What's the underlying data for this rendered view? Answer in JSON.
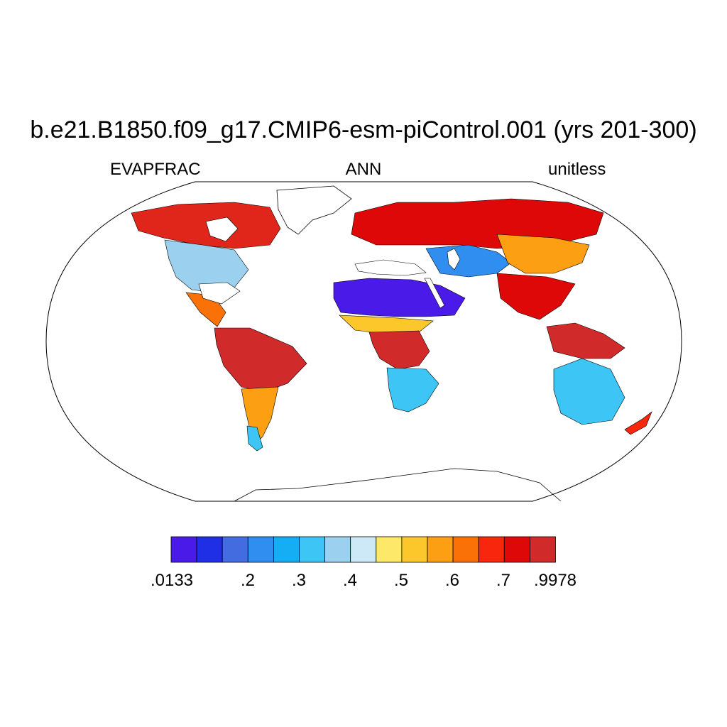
{
  "title": "b.e21.B1850.f09_g17.CMIP6-esm-piControl.001 (yrs 201-300)",
  "left_subtitle": "EVAPFRAC",
  "center_subtitle": "ANN",
  "right_subtitle": "unitless",
  "colorbar": {
    "colors": [
      "#4a1be8",
      "#1f2fe6",
      "#436ce0",
      "#2f8ef0",
      "#15aef5",
      "#3dc6f5",
      "#9bd0ee",
      "#cde8f6",
      "#fde86a",
      "#fcc72a",
      "#fc9f12",
      "#fa7108",
      "#f7260d",
      "#de0808",
      "#d12a2a"
    ],
    "labels": [
      ".0133",
      ".2",
      ".3",
      ".4",
      ".5",
      ".6",
      ".7",
      ".9978"
    ]
  },
  "regions": [
    {
      "name": "North America north",
      "color": "#e0261a"
    },
    {
      "name": "North America interior",
      "color": "#9bd0ee"
    },
    {
      "name": "Central America",
      "color": "#fa7108"
    },
    {
      "name": "South America north",
      "color": "#d12a2a"
    },
    {
      "name": "South America south",
      "color": "#fc9f12"
    },
    {
      "name": "Patagonia",
      "color": "#3dc6f5"
    },
    {
      "name": "Europe and Siberia",
      "color": "#de0808"
    },
    {
      "name": "Sahara and Arabia",
      "color": "#4a1be8"
    },
    {
      "name": "Sahel",
      "color": "#fcc72a"
    },
    {
      "name": "Central Africa",
      "color": "#d12a2a"
    },
    {
      "name": "Southern Africa",
      "color": "#3dc6f5"
    },
    {
      "name": "Central Asia",
      "color": "#2f8ef0"
    },
    {
      "name": "Tibet and Mongolia",
      "color": "#fc9f12"
    },
    {
      "name": "Southeast Asia",
      "color": "#de0808"
    },
    {
      "name": "Maritime Continent",
      "color": "#d12a2a"
    },
    {
      "name": "Australia",
      "color": "#3dc6f5"
    },
    {
      "name": "New Zealand",
      "color": "#f7260d"
    }
  ]
}
